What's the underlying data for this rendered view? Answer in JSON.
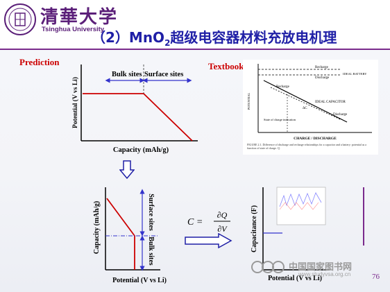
{
  "header": {
    "logo_chinese": "清華大学",
    "logo_english": "Tsinghua University",
    "title_prefix": "（2）MnO",
    "title_sub": "2",
    "title_suffix": "超级电容器材料充放电机理"
  },
  "prediction": {
    "label": "Prediction",
    "bulk_sites": "Bulk sites",
    "surface_sites": "Surface sites",
    "ylabel": "Potential (V vs Li)",
    "xlabel": "Capacity (mAh/g)"
  },
  "textbook": {
    "label": "Textbook",
    "recharge": "Recharge",
    "discharge": "Discharge",
    "ideal_battery": "IDEAL BATTERY",
    "ideal_capacitor": "IDEAL CAPACITOR",
    "state_of_charge": "State of charge indication",
    "dq": "ΔC",
    "potential": "POTENTIAL",
    "charge_discharge": "CHARGE / DISCHARGE",
    "caption": "FIGURE 2.1. Difference of discharge and recharge relationships for a capacitor and a battery: potential as a function of state of charge. Q."
  },
  "lower_left": {
    "ylabel": "Capacity (mAh/g)",
    "xlabel": "Potential (V vs Li)",
    "surface_sites": "Surface sites",
    "bulk_sites": "Bulk sites"
  },
  "formula": {
    "lhs": "C =",
    "num": "∂Q",
    "den": "∂V"
  },
  "lower_right": {
    "ylabel": "Capacitance (F)",
    "xlabel": "Potential (V vs Li)"
  },
  "watermark": {
    "cn": "中国国家图书网",
    "url": "www.studyvsa.org.cn"
  },
  "page_number": "76",
  "colors": {
    "title_blue": "#1f1fa6",
    "accent_purple": "#7a2a8c",
    "plot_red": "#cc0000",
    "arrow_blue": "#3333cc"
  }
}
